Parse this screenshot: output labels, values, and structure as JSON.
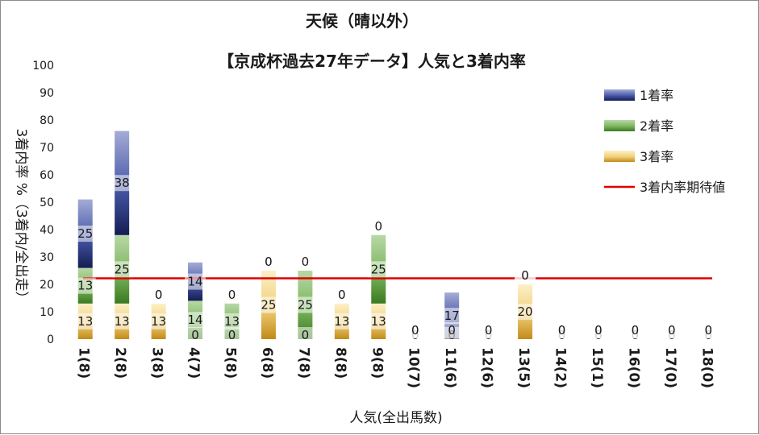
{
  "chart_data": {
    "type": "bar",
    "title": "天候（晴以外）",
    "subtitle": "【京成杯過去27年データ】人気と3着内率",
    "xlabel": "人気(全出馬数)",
    "ylabel": "3着内率 %（3着内/全出走）",
    "ylim": [
      0,
      100
    ],
    "yticks": [
      0,
      10,
      20,
      30,
      40,
      50,
      60,
      70,
      80,
      90,
      100
    ],
    "grid": false,
    "legend_position": "top-right",
    "stacked": true,
    "categories": [
      "1(8)",
      "2(8)",
      "3(8)",
      "4(7)",
      "5(8)",
      "6(8)",
      "7(8)",
      "8(8)",
      "9(8)",
      "10(7)",
      "11(6)",
      "12(6)",
      "13(5)",
      "14(2)",
      "15(1)",
      "16(0)",
      "17(0)",
      "18(0)"
    ],
    "series": [
      {
        "name": "3着率",
        "color": "#c8962a",
        "values": [
          13,
          13,
          13,
          0,
          0,
          25,
          0,
          13,
          13,
          0,
          0,
          0,
          20,
          0,
          0,
          0,
          0,
          0
        ]
      },
      {
        "name": "2着率",
        "color": "#4e8a2e",
        "values": [
          13,
          25,
          0,
          14,
          13,
          0,
          25,
          0,
          25,
          0,
          0,
          0,
          0,
          0,
          0,
          0,
          0,
          0
        ]
      },
      {
        "name": "1着率",
        "color": "#2a3580",
        "values": [
          25,
          38,
          0,
          14,
          0,
          0,
          0,
          0,
          0,
          0,
          17,
          0,
          0,
          0,
          0,
          0,
          0,
          0
        ]
      }
    ],
    "reference_line": {
      "name": "3着内率期待値",
      "value": 22.2,
      "color": "#e00000"
    }
  }
}
